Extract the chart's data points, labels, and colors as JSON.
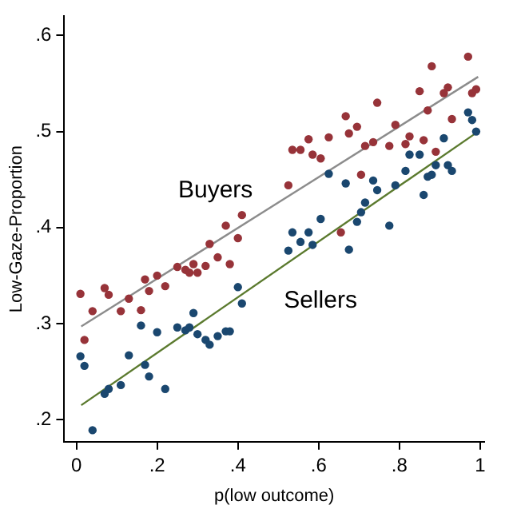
{
  "chart_data": {
    "type": "scatter",
    "xlabel": "p(low outcome)",
    "ylabel": "Low-Gaze-Proportion",
    "xlim": [
      -0.03,
      1.01
    ],
    "ylim": [
      0.177,
      0.62
    ],
    "xticks": [
      0,
      {
        "value": 0.2,
        "label": ".2"
      },
      {
        "value": 0.4,
        "label": ".4"
      },
      {
        "value": 0.6,
        "label": ".6"
      },
      {
        "value": 0.8,
        "label": ".8"
      },
      1
    ],
    "yticks": [
      {
        "value": 0.2,
        "label": ".2"
      },
      {
        "value": 0.3,
        "label": ".3"
      },
      {
        "value": 0.4,
        "label": ".4"
      },
      {
        "value": 0.5,
        "label": ".5"
      },
      {
        "value": 0.6,
        "label": ".6"
      }
    ],
    "grid": false,
    "legend": false,
    "marker": "circle",
    "annotations": [
      "Buyers",
      "Sellers"
    ],
    "series": [
      {
        "color": "#973339",
        "x": [
          0.01,
          0.02,
          0.04,
          0.07,
          0.08,
          0.11,
          0.13,
          0.16,
          0.17,
          0.18,
          0.2,
          0.22,
          0.25,
          0.27,
          0.28,
          0.29,
          0.3,
          0.32,
          0.33,
          0.35,
          0.37,
          0.38,
          0.4,
          0.41,
          0.525,
          0.535,
          0.555,
          0.575,
          0.585,
          0.605,
          0.625,
          0.655,
          0.667,
          0.675,
          0.695,
          0.705,
          0.715,
          0.735,
          0.745,
          0.775,
          0.79,
          0.815,
          0.825,
          0.85,
          0.86,
          0.87,
          0.88,
          0.89,
          0.91,
          0.92,
          0.93,
          0.97,
          0.98,
          0.99
        ],
        "values": [
          0.331,
          0.283,
          0.313,
          0.337,
          0.33,
          0.313,
          0.326,
          0.314,
          0.346,
          0.334,
          0.35,
          0.339,
          0.359,
          0.356,
          0.353,
          0.362,
          0.353,
          0.36,
          0.383,
          0.369,
          0.402,
          0.362,
          0.389,
          0.413,
          0.444,
          0.481,
          0.481,
          0.492,
          0.476,
          0.472,
          0.494,
          0.395,
          0.516,
          0.498,
          0.505,
          0.455,
          0.485,
          0.489,
          0.53,
          0.485,
          0.507,
          0.487,
          0.495,
          0.542,
          0.491,
          0.522,
          0.568,
          0.479,
          0.54,
          0.546,
          0.513,
          0.578,
          0.54,
          0.544
        ]
      },
      {
        "color": "#1a476f",
        "x": [
          0.01,
          0.02,
          0.04,
          0.07,
          0.08,
          0.11,
          0.13,
          0.16,
          0.17,
          0.18,
          0.2,
          0.22,
          0.25,
          0.27,
          0.28,
          0.29,
          0.3,
          0.32,
          0.33,
          0.35,
          0.37,
          0.38,
          0.4,
          0.41,
          0.525,
          0.535,
          0.555,
          0.575,
          0.585,
          0.605,
          0.625,
          0.667,
          0.675,
          0.695,
          0.705,
          0.715,
          0.735,
          0.745,
          0.775,
          0.79,
          0.815,
          0.825,
          0.85,
          0.86,
          0.87,
          0.88,
          0.89,
          0.91,
          0.92,
          0.93,
          0.97,
          0.98,
          0.99
        ],
        "values": [
          0.266,
          0.256,
          0.189,
          0.227,
          0.232,
          0.236,
          0.267,
          0.298,
          0.257,
          0.245,
          0.291,
          0.232,
          0.296,
          0.293,
          0.296,
          0.311,
          0.289,
          0.283,
          0.278,
          0.287,
          0.292,
          0.292,
          0.338,
          0.321,
          0.376,
          0.395,
          0.385,
          0.395,
          0.382,
          0.409,
          0.456,
          0.446,
          0.377,
          0.406,
          0.416,
          0.426,
          0.449,
          0.439,
          0.402,
          0.444,
          0.459,
          0.476,
          0.476,
          0.434,
          0.453,
          0.455,
          0.465,
          0.493,
          0.465,
          0.459,
          0.52,
          0.512,
          0.5
        ]
      },
      {
        "type": "line",
        "color": "#8c8c8c",
        "marker": "none",
        "x": [
          0.012,
          0.995
        ],
        "values": [
          0.297,
          0.557
        ]
      },
      {
        "type": "line",
        "color": "#5b7a2e",
        "marker": "none",
        "x": [
          0.012,
          0.995
        ],
        "values": [
          0.215,
          0.5
        ]
      }
    ]
  }
}
